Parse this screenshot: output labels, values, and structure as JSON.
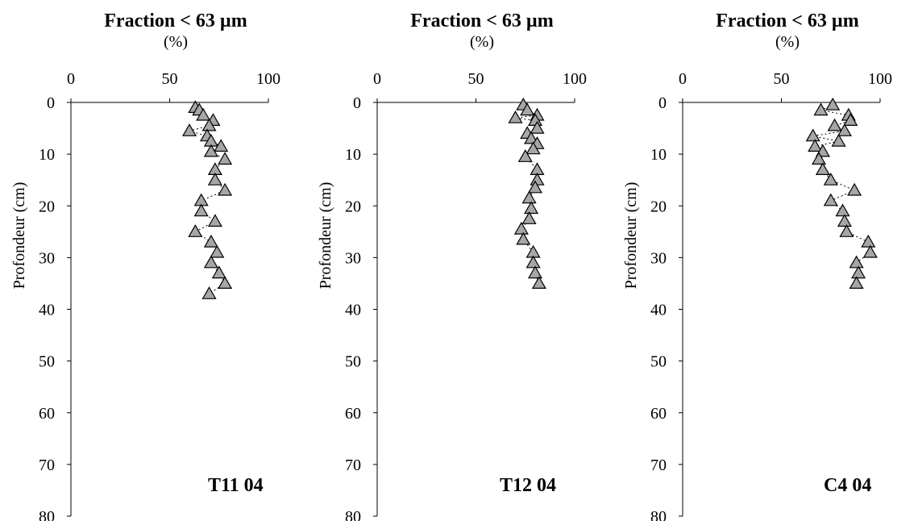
{
  "chart_data": [
    {
      "type": "scatter",
      "title": "Fraction < 63 µm",
      "title_unit": "(%)",
      "xlabel": "Fraction < 63 µm (%)",
      "ylabel": "Profondeur (cm)",
      "annotation": "T11 04",
      "xlim": [
        0,
        100
      ],
      "ylim": [
        0,
        80
      ],
      "y_inverted": true,
      "x_axis_position": "top",
      "xticks": [
        0,
        50,
        100
      ],
      "yticks": [
        0,
        10,
        20,
        30,
        40,
        50,
        60,
        70,
        80
      ],
      "marker": "triangle",
      "marker_color": "#a6a6a6",
      "line_style": "dotted",
      "points": [
        {
          "x": 63,
          "y": 1
        },
        {
          "x": 65,
          "y": 1.5
        },
        {
          "x": 67,
          "y": 2.5
        },
        {
          "x": 72,
          "y": 3.5
        },
        {
          "x": 70,
          "y": 4.5
        },
        {
          "x": 60,
          "y": 5.5
        },
        {
          "x": 69,
          "y": 6.5
        },
        {
          "x": 71,
          "y": 7.5
        },
        {
          "x": 76,
          "y": 8.5
        },
        {
          "x": 71,
          "y": 9.5
        },
        {
          "x": 78,
          "y": 11
        },
        {
          "x": 73,
          "y": 13
        },
        {
          "x": 73,
          "y": 15
        },
        {
          "x": 78,
          "y": 17
        },
        {
          "x": 66,
          "y": 19
        },
        {
          "x": 66,
          "y": 21
        },
        {
          "x": 73,
          "y": 23
        },
        {
          "x": 63,
          "y": 25
        },
        {
          "x": 71,
          "y": 27
        },
        {
          "x": 74,
          "y": 29
        },
        {
          "x": 71,
          "y": 31
        },
        {
          "x": 75,
          "y": 33
        },
        {
          "x": 78,
          "y": 35
        },
        {
          "x": 70,
          "y": 37
        }
      ]
    },
    {
      "type": "scatter",
      "title": "Fraction < 63 µm",
      "title_unit": "(%)",
      "xlabel": "Fraction < 63 µm (%)",
      "ylabel": "Profondeur (cm)",
      "annotation": "T12 04",
      "xlim": [
        0,
        100
      ],
      "ylim": [
        0,
        80
      ],
      "y_inverted": true,
      "x_axis_position": "top",
      "xticks": [
        0,
        50,
        100
      ],
      "yticks": [
        0,
        10,
        20,
        30,
        40,
        50,
        60,
        70,
        80
      ],
      "marker": "triangle",
      "marker_color": "#a6a6a6",
      "line_style": "dotted",
      "points": [
        {
          "x": 74,
          "y": 0.5
        },
        {
          "x": 76,
          "y": 1.5
        },
        {
          "x": 81,
          "y": 2.5
        },
        {
          "x": 70,
          "y": 3
        },
        {
          "x": 80,
          "y": 3.5
        },
        {
          "x": 81,
          "y": 5
        },
        {
          "x": 76,
          "y": 6
        },
        {
          "x": 78,
          "y": 7
        },
        {
          "x": 81,
          "y": 8
        },
        {
          "x": 79,
          "y": 9
        },
        {
          "x": 75,
          "y": 10.5
        },
        {
          "x": 81,
          "y": 13
        },
        {
          "x": 81,
          "y": 15
        },
        {
          "x": 80,
          "y": 16.5
        },
        {
          "x": 77,
          "y": 18.5
        },
        {
          "x": 78,
          "y": 20.5
        },
        {
          "x": 77,
          "y": 22.5
        },
        {
          "x": 73,
          "y": 24.5
        },
        {
          "x": 74,
          "y": 26.5
        },
        {
          "x": 79,
          "y": 29
        },
        {
          "x": 79,
          "y": 31
        },
        {
          "x": 80,
          "y": 33
        },
        {
          "x": 82,
          "y": 35
        }
      ]
    },
    {
      "type": "scatter",
      "title": "Fraction < 63 µm",
      "title_unit": "(%)",
      "xlabel": "Fraction < 63 µm (%)",
      "ylabel": "Profondeur (cm)",
      "annotation": "C4 04",
      "xlim": [
        0,
        100
      ],
      "ylim": [
        0,
        80
      ],
      "y_inverted": true,
      "x_axis_position": "top",
      "xticks": [
        0,
        50,
        100
      ],
      "yticks": [
        0,
        10,
        20,
        30,
        40,
        50,
        60,
        70,
        80
      ],
      "marker": "triangle",
      "marker_color": "#a6a6a6",
      "line_style": "dotted",
      "points": [
        {
          "x": 76,
          "y": 0.5
        },
        {
          "x": 70,
          "y": 1.5
        },
        {
          "x": 84,
          "y": 2.5
        },
        {
          "x": 85,
          "y": 3.5
        },
        {
          "x": 77,
          "y": 4.5
        },
        {
          "x": 82,
          "y": 5.5
        },
        {
          "x": 66,
          "y": 6.5
        },
        {
          "x": 79,
          "y": 7.5
        },
        {
          "x": 67,
          "y": 8.5
        },
        {
          "x": 71,
          "y": 9.5
        },
        {
          "x": 69,
          "y": 11
        },
        {
          "x": 71,
          "y": 13
        },
        {
          "x": 75,
          "y": 15
        },
        {
          "x": 87,
          "y": 17
        },
        {
          "x": 75,
          "y": 19
        },
        {
          "x": 81,
          "y": 21
        },
        {
          "x": 82,
          "y": 23
        },
        {
          "x": 83,
          "y": 25
        },
        {
          "x": 94,
          "y": 27
        },
        {
          "x": 95,
          "y": 29
        },
        {
          "x": 88,
          "y": 31
        },
        {
          "x": 89,
          "y": 33
        },
        {
          "x": 88,
          "y": 35
        }
      ]
    }
  ]
}
